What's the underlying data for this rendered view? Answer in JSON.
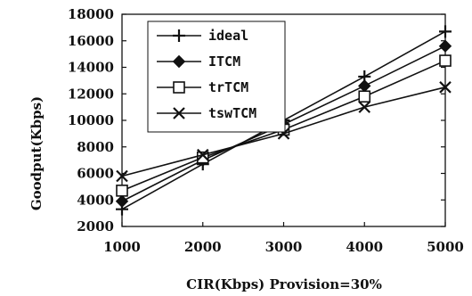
{
  "chart_data": {
    "type": "line",
    "x": [
      1000,
      2000,
      3000,
      4000,
      5000
    ],
    "xlabel": "CIR(Kbps) Provision=30%",
    "ylabel": "Goodput(Kbps)",
    "xlim": [
      1000,
      5000
    ],
    "ylim": [
      2000,
      18000
    ],
    "xticks": [
      "1000",
      "2000",
      "3000",
      "4000",
      "5000"
    ],
    "yticks": [
      "2000",
      "4000",
      "6000",
      "8000",
      "10000",
      "12000",
      "14000",
      "16000",
      "18000"
    ],
    "grid": false,
    "legend_position": "top-left",
    "series": [
      {
        "name": "ideal",
        "marker": "plus",
        "values": [
          3300,
          6700,
          10000,
          13300,
          16700
        ]
      },
      {
        "name": "ITCM",
        "marker": "diamond",
        "values": [
          3900,
          7000,
          9700,
          12600,
          15600
        ]
      },
      {
        "name": "trTCM",
        "marker": "square",
        "values": [
          4700,
          7200,
          9300,
          11800,
          14500
        ]
      },
      {
        "name": "tswTCM",
        "marker": "x",
        "values": [
          5800,
          7400,
          9000,
          11000,
          12500
        ]
      }
    ]
  }
}
